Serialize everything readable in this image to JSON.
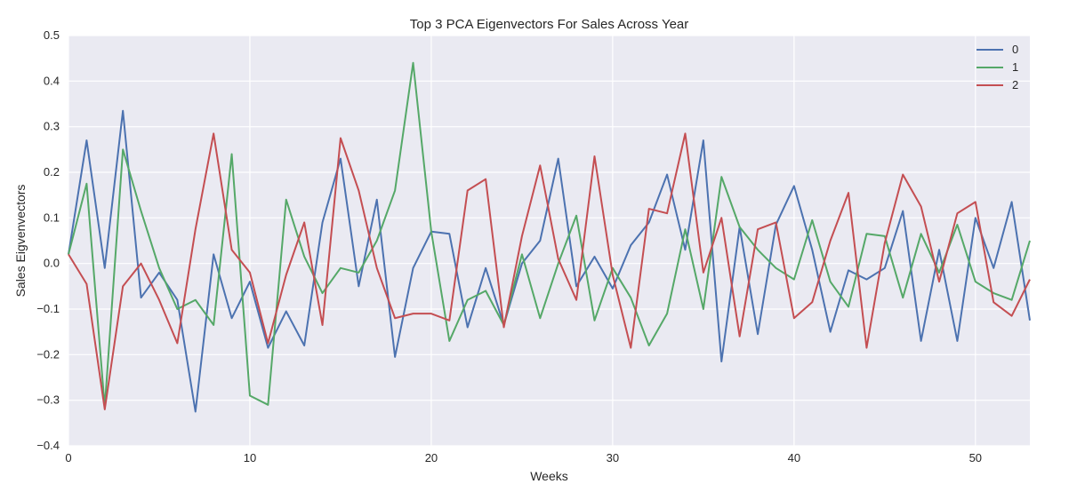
{
  "chart_data": {
    "type": "line",
    "title": "Top 3 PCA Eigenvectors For Sales Across Year",
    "xlabel": "Weeks",
    "ylabel": "Sales Eigvenvectors",
    "xlim": [
      0,
      53
    ],
    "ylim": [
      -0.4,
      0.5
    ],
    "xticks": [
      0,
      10,
      20,
      30,
      40,
      50
    ],
    "yticks": [
      -0.4,
      -0.3,
      -0.2,
      -0.1,
      0.0,
      0.1,
      0.2,
      0.3,
      0.4,
      0.5
    ],
    "xtick_labels": [
      "0",
      "10",
      "20",
      "30",
      "40",
      "50"
    ],
    "ytick_labels": [
      "−0.4",
      "−0.3",
      "−0.2",
      "−0.1",
      "0.0",
      "0.1",
      "0.2",
      "0.3",
      "0.4",
      "0.5"
    ],
    "grid": true,
    "legend_position": "top-right",
    "background_color": "#eaeaf2",
    "grid_color": "#ffffff",
    "series": [
      {
        "name": "0",
        "color": "#4c72b0",
        "values": [
          0.02,
          0.27,
          -0.01,
          0.335,
          -0.075,
          -0.02,
          -0.08,
          -0.325,
          0.02,
          -0.12,
          -0.04,
          -0.185,
          -0.105,
          -0.18,
          0.09,
          0.23,
          -0.05,
          0.14,
          -0.205,
          -0.01,
          0.07,
          0.065,
          -0.14,
          -0.01,
          -0.135,
          0.0,
          0.05,
          0.23,
          -0.05,
          0.015,
          -0.055,
          0.04,
          0.09,
          0.195,
          0.03,
          0.27,
          -0.215,
          0.08,
          -0.155,
          0.085,
          0.17,
          0.03,
          -0.15,
          -0.015,
          -0.035,
          -0.01,
          0.115,
          -0.17,
          0.03,
          -0.17,
          0.1,
          -0.01,
          0.135,
          -0.125
        ]
      },
      {
        "name": "1",
        "color": "#55a868",
        "values": [
          0.02,
          0.175,
          -0.315,
          0.25,
          0.115,
          -0.01,
          -0.1,
          -0.08,
          -0.135,
          0.24,
          -0.29,
          -0.31,
          0.14,
          0.015,
          -0.065,
          -0.01,
          -0.02,
          0.05,
          0.16,
          0.44,
          0.07,
          -0.17,
          -0.08,
          -0.06,
          -0.135,
          0.02,
          -0.12,
          0.0,
          0.105,
          -0.125,
          -0.01,
          -0.075,
          -0.18,
          -0.11,
          0.075,
          -0.1,
          0.19,
          0.08,
          0.03,
          -0.01,
          -0.035,
          0.095,
          -0.04,
          -0.095,
          0.065,
          0.06,
          -0.075,
          0.065,
          -0.02,
          0.085,
          -0.04,
          -0.065,
          -0.08,
          0.05
        ]
      },
      {
        "name": "2",
        "color": "#c44e52",
        "values": [
          0.02,
          -0.045,
          -0.32,
          -0.05,
          0.0,
          -0.08,
          -0.175,
          0.075,
          0.285,
          0.03,
          -0.02,
          -0.175,
          -0.025,
          0.09,
          -0.135,
          0.275,
          0.16,
          -0.01,
          -0.12,
          -0.11,
          -0.11,
          -0.125,
          0.16,
          0.185,
          -0.14,
          0.06,
          0.215,
          0.01,
          -0.08,
          0.235,
          -0.025,
          -0.185,
          0.12,
          0.11,
          0.285,
          -0.02,
          0.1,
          -0.16,
          0.075,
          0.09,
          -0.12,
          -0.085,
          0.05,
          0.155,
          -0.185,
          0.045,
          0.195,
          0.125,
          -0.04,
          0.11,
          0.135,
          -0.085,
          -0.115,
          -0.035
        ]
      }
    ]
  }
}
